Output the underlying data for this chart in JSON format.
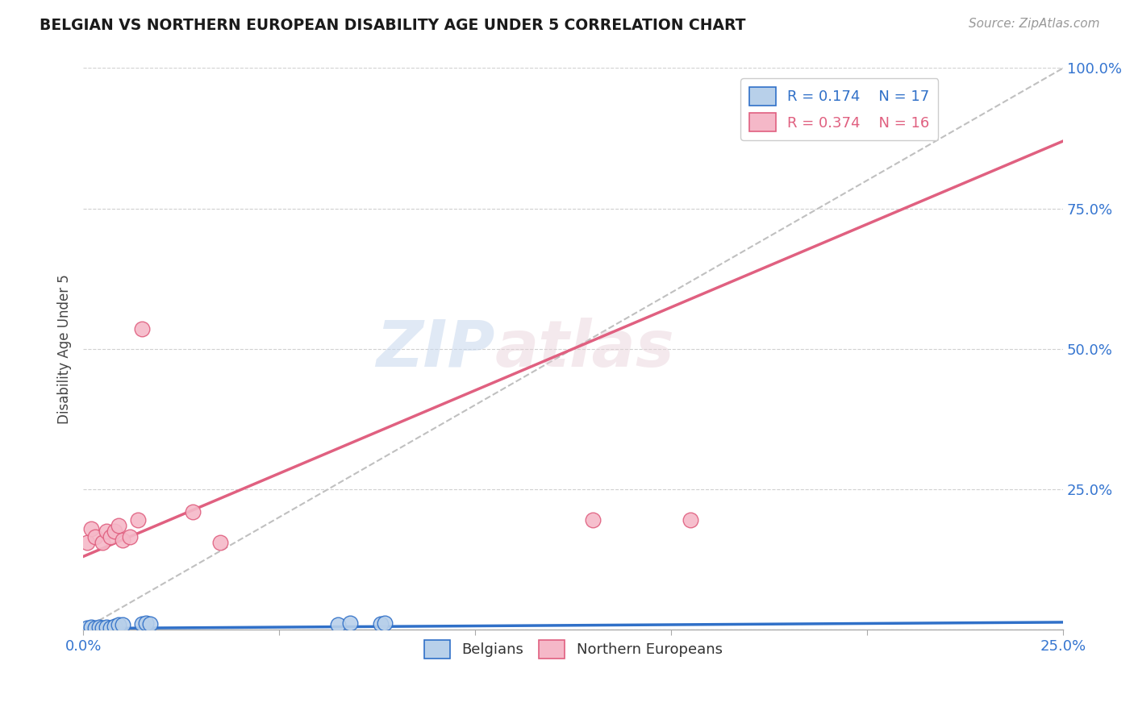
{
  "title": "BELGIAN VS NORTHERN EUROPEAN DISABILITY AGE UNDER 5 CORRELATION CHART",
  "source": "Source: ZipAtlas.com",
  "ylabel": "Disability Age Under 5",
  "xlim": [
    0.0,
    0.25
  ],
  "ylim": [
    0.0,
    1.0
  ],
  "xticks": [
    0.0,
    0.05,
    0.1,
    0.15,
    0.2,
    0.25
  ],
  "yticks": [
    0.0,
    0.25,
    0.5,
    0.75,
    1.0
  ],
  "ytick_labels": [
    "",
    "25.0%",
    "50.0%",
    "75.0%",
    "100.0%"
  ],
  "xtick_labels": [
    "0.0%",
    "",
    "",
    "",
    "",
    "25.0%"
  ],
  "blue_R": 0.174,
  "blue_N": 17,
  "pink_R": 0.374,
  "pink_N": 16,
  "blue_color": "#b8d0ea",
  "pink_color": "#f5b8c8",
  "blue_line_color": "#3070c8",
  "pink_line_color": "#e06080",
  "diagonal_color": "#c0c0c0",
  "grid_color": "#d0d0d0",
  "axis_label_color": "#3575d0",
  "title_color": "#1a1a1a",
  "background_color": "#ffffff",
  "watermark_zip": "ZIP",
  "watermark_atlas": "atlas",
  "blue_scatter_x": [
    0.001,
    0.002,
    0.003,
    0.004,
    0.005,
    0.006,
    0.007,
    0.008,
    0.009,
    0.01,
    0.015,
    0.016,
    0.017,
    0.065,
    0.068,
    0.076,
    0.077
  ],
  "blue_scatter_y": [
    0.003,
    0.004,
    0.003,
    0.005,
    0.003,
    0.004,
    0.003,
    0.006,
    0.008,
    0.009,
    0.01,
    0.011,
    0.01,
    0.009,
    0.011,
    0.01,
    0.011
  ],
  "pink_scatter_x": [
    0.001,
    0.002,
    0.003,
    0.005,
    0.006,
    0.007,
    0.008,
    0.009,
    0.01,
    0.012,
    0.014,
    0.015,
    0.028,
    0.035,
    0.13,
    0.155
  ],
  "pink_scatter_y": [
    0.155,
    0.18,
    0.165,
    0.155,
    0.175,
    0.165,
    0.175,
    0.185,
    0.16,
    0.165,
    0.195,
    0.535,
    0.21,
    0.155,
    0.195,
    0.195
  ],
  "blue_line_x": [
    0.0,
    0.25
  ],
  "blue_line_y": [
    0.002,
    0.013
  ],
  "pink_line_x": [
    0.0,
    0.25
  ],
  "pink_line_y": [
    0.13,
    0.87
  ],
  "diag_line_x": [
    0.0,
    0.25
  ],
  "diag_line_y": [
    0.0,
    1.0
  ]
}
